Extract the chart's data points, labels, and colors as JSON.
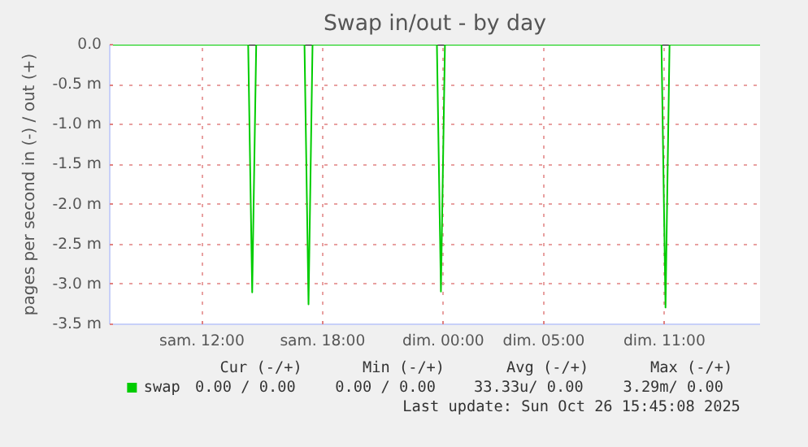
{
  "chart_data": {
    "type": "line",
    "title": "Swap in/out - by day",
    "ylabel": "pages per second in (-) / out (+)",
    "x": [
      "2025-10-25T07:25",
      "2025-10-25T14:18",
      "2025-10-25T14:30",
      "2025-10-25T14:42",
      "2025-10-25T17:06",
      "2025-10-25T17:18",
      "2025-10-25T17:30",
      "2025-10-25T23:41",
      "2025-10-25T23:53",
      "2025-10-26T00:05",
      "2025-10-26T10:51",
      "2025-10-26T11:03",
      "2025-10-26T11:15",
      "2025-10-26T15:45"
    ],
    "series": [
      {
        "name": "swap",
        "color": "#00cc00",
        "values": [
          0,
          0,
          -3.1,
          0,
          0,
          -3.25,
          0,
          0,
          -3.09,
          0,
          0,
          -3.29,
          0,
          0
        ]
      }
    ],
    "xlim": [
      "2025-10-25T07:25",
      "2025-10-26T15:45"
    ],
    "xticks": [
      {
        "value": "2025-10-25T12:00",
        "label": "sam. 12:00"
      },
      {
        "value": "2025-10-25T18:00",
        "label": "sam. 18:00"
      },
      {
        "value": "2025-10-26T00:00",
        "label": "dim. 00:00"
      },
      {
        "value": "2025-10-26T05:00",
        "label": "dim. 05:00"
      },
      {
        "value": "2025-10-26T11:00",
        "label": "dim. 11:00"
      }
    ],
    "ylim": [
      -3.5,
      0
    ],
    "yticks": [
      {
        "value": 0,
        "label": "0.0"
      },
      {
        "value": -0.5,
        "label": "-0.5 m"
      },
      {
        "value": -1.0,
        "label": "-1.0 m"
      },
      {
        "value": -1.5,
        "label": "-1.5 m"
      },
      {
        "value": -2.0,
        "label": "-2.0 m"
      },
      {
        "value": -2.5,
        "label": "-2.5 m"
      },
      {
        "value": -3.0,
        "label": "-3.0 m"
      },
      {
        "value": -3.5,
        "label": "-3.5 m"
      }
    ],
    "grid": true,
    "line_style": "solid",
    "legend": "bottom",
    "annotations": [
      "Cur (-/+)",
      "Min (-/+)",
      "Avg (-/+)",
      "Max (-/+)",
      "0.00 /   0.00",
      "0.00 /   0.00",
      "33.33u/  0.00",
      "3.29m/  0.00",
      "Last update: Sun Oct 26 15:45:08 2025"
    ]
  }
}
